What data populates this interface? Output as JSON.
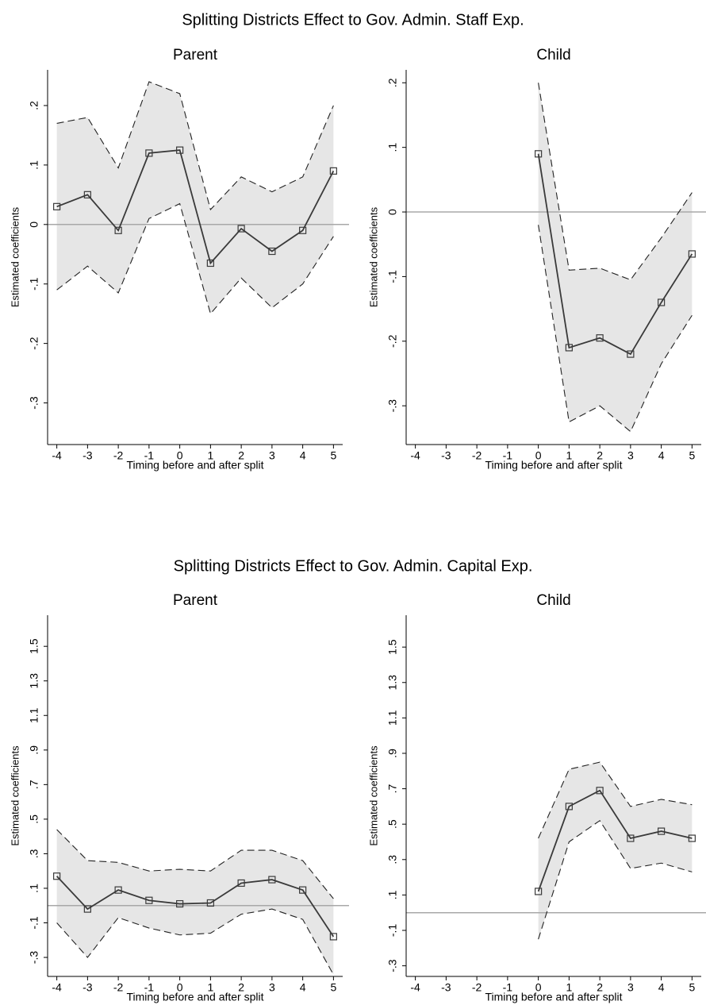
{
  "chart_data": [
    {
      "title": "Splitting Districts Effect to Gov. Admin. Staff Exp.",
      "panels": [
        {
          "type": "line",
          "title": "Parent",
          "xlabel": "Timing before and after split",
          "ylabel": "Estimated coefficients",
          "x": [
            -4,
            -3,
            -2,
            -1,
            0,
            1,
            2,
            3,
            4,
            5
          ],
          "values": [
            0.03,
            0.05,
            -0.01,
            0.12,
            0.125,
            -0.065,
            -0.007,
            -0.045,
            -0.01,
            0.09
          ],
          "ci_upper": [
            0.17,
            0.18,
            0.095,
            0.24,
            0.22,
            0.025,
            0.08,
            0.055,
            0.08,
            0.2
          ],
          "ci_lower": [
            -0.11,
            -0.07,
            -0.115,
            0.01,
            0.035,
            -0.15,
            -0.09,
            -0.14,
            -0.1,
            -0.02
          ],
          "color": "#3a3a3a",
          "ci_color": "#e6e6e6",
          "hline": 0,
          "xlim": [
            -4.3,
            5.3
          ],
          "ylim": [
            -0.37,
            0.26
          ],
          "xticks": [
            -4,
            -3,
            -2,
            -1,
            0,
            1,
            2,
            3,
            4,
            5
          ],
          "yticks": [
            {
              "value": -0.3,
              "label": "-.3"
            },
            {
              "value": -0.2,
              "label": "-.2"
            },
            {
              "value": -0.1,
              "label": "-.1"
            },
            0,
            {
              "value": 0.1,
              "label": ".1"
            },
            {
              "value": 0.2,
              "label": ".2"
            }
          ]
        },
        {
          "type": "line",
          "title": "Child",
          "xlabel": "Timing before and after split",
          "ylabel": "Estimated coefficients",
          "x": [
            -4,
            -3,
            -2,
            -1,
            0,
            1,
            2,
            3,
            4,
            5
          ],
          "values": [
            null,
            null,
            null,
            null,
            0.09,
            -0.21,
            -0.195,
            -0.22,
            -0.14,
            -0.065
          ],
          "ci_upper": [
            null,
            null,
            null,
            null,
            0.2,
            -0.09,
            -0.087,
            -0.105,
            -0.04,
            0.03
          ],
          "ci_lower": [
            null,
            null,
            null,
            null,
            -0.02,
            -0.325,
            -0.3,
            -0.34,
            -0.235,
            -0.16
          ],
          "color": "#3a3a3a",
          "ci_color": "#e6e6e6",
          "hline": 0,
          "xlim": [
            -4.3,
            5.3
          ],
          "ylim": [
            -0.36,
            0.22
          ],
          "xticks": [
            -4,
            -3,
            -2,
            -1,
            0,
            1,
            2,
            3,
            4,
            5
          ],
          "yticks": [
            {
              "value": -0.3,
              "label": "-.3"
            },
            {
              "value": -0.2,
              "label": "-.2"
            },
            {
              "value": -0.1,
              "label": "-.1"
            },
            0,
            {
              "value": 0.1,
              "label": ".1"
            },
            {
              "value": 0.2,
              "label": ".2"
            }
          ]
        }
      ]
    },
    {
      "title": "Splitting Districts Effect to Gov. Admin. Capital Exp.",
      "panels": [
        {
          "type": "line",
          "title": "Parent",
          "xlabel": "Timing before and after split",
          "ylabel": "Estimated coefficients",
          "x": [
            -4,
            -3,
            -2,
            -1,
            0,
            1,
            2,
            3,
            4,
            5
          ],
          "values": [
            0.17,
            -0.02,
            0.09,
            0.03,
            0.01,
            0.015,
            0.13,
            0.15,
            0.09,
            -0.18
          ],
          "ci_upper": [
            0.44,
            0.26,
            0.25,
            0.2,
            0.21,
            0.2,
            0.32,
            0.32,
            0.26,
            0.04
          ],
          "ci_lower": [
            -0.1,
            -0.3,
            -0.07,
            -0.13,
            -0.17,
            -0.16,
            -0.05,
            -0.02,
            -0.08,
            -0.4
          ],
          "color": "#3a3a3a",
          "ci_color": "#e6e6e6",
          "hline": 0,
          "xlim": [
            -4.3,
            5.3
          ],
          "ylim": [
            -0.41,
            1.68
          ],
          "xticks": [
            -4,
            -3,
            -2,
            -1,
            0,
            1,
            2,
            3,
            4,
            5
          ],
          "yticks": [
            {
              "value": -0.3,
              "label": "-.3"
            },
            {
              "value": -0.1,
              "label": "-.1"
            },
            {
              "value": 0.1,
              "label": ".1"
            },
            {
              "value": 0.3,
              "label": ".3"
            },
            {
              "value": 0.5,
              "label": ".5"
            },
            {
              "value": 0.7,
              "label": ".7"
            },
            {
              "value": 0.9,
              "label": ".9"
            },
            1.1,
            1.3,
            1.5
          ]
        },
        {
          "type": "line",
          "title": "Child",
          "xlabel": "Timing before and after split",
          "ylabel": "Estimated coefficients",
          "x": [
            -4,
            -3,
            -2,
            -1,
            0,
            1,
            2,
            3,
            4,
            5
          ],
          "values": [
            null,
            null,
            null,
            null,
            0.12,
            0.6,
            0.69,
            0.42,
            0.46,
            0.42
          ],
          "ci_upper": [
            null,
            null,
            null,
            null,
            0.42,
            0.81,
            0.85,
            0.6,
            0.64,
            0.61
          ],
          "ci_lower": [
            null,
            null,
            null,
            null,
            -0.15,
            0.4,
            0.52,
            0.25,
            0.28,
            0.23
          ],
          "color": "#3a3a3a",
          "ci_color": "#e6e6e6",
          "hline": 0,
          "xlim": [
            -4.3,
            5.3
          ],
          "ylim": [
            -0.36,
            1.68
          ],
          "xticks": [
            -4,
            -3,
            -2,
            -1,
            0,
            1,
            2,
            3,
            4,
            5
          ],
          "yticks": [
            {
              "value": -0.3,
              "label": "-.3"
            },
            {
              "value": -0.1,
              "label": "-.1"
            },
            {
              "value": 0.1,
              "label": ".1"
            },
            {
              "value": 0.3,
              "label": ".3"
            },
            {
              "value": 0.5,
              "label": ".5"
            },
            {
              "value": 0.7,
              "label": ".7"
            },
            {
              "value": 0.9,
              "label": ".9"
            },
            1.1,
            1.3,
            1.5
          ]
        }
      ]
    }
  ]
}
